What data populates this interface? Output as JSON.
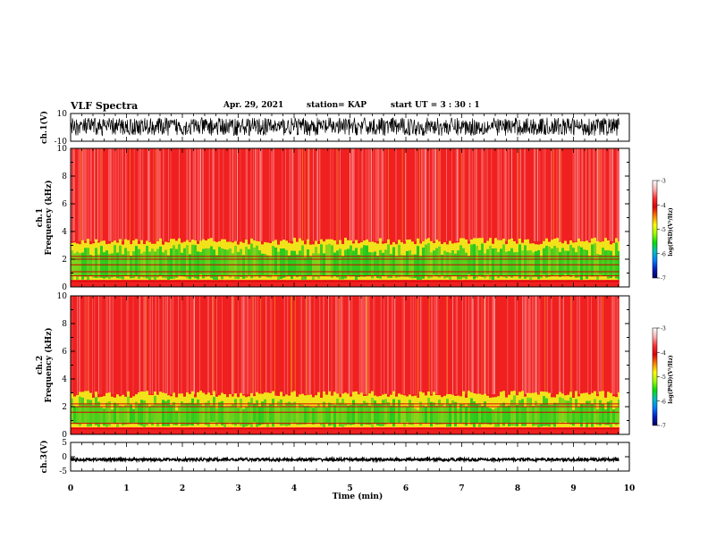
{
  "header": {
    "title": "VLF Spectra",
    "date": "Apr. 29, 2021",
    "station": "station= KAP",
    "start_ut": "start UT =  3 : 30 : 1"
  },
  "colors": {
    "spec_bg": "#f02020",
    "spec_dark": "#d40000",
    "spec_yellow": "#f2e21a",
    "spec_green": "#22c81e",
    "wave": "#000000"
  },
  "colorbar": {
    "label": "log(PSD)(V²/Hz)",
    "ticks": [
      "-3",
      "-4",
      "-5",
      "-6",
      "-7"
    ],
    "gradient": [
      "#ffffff",
      "#ffb0b0",
      "#ff3030",
      "#e00000",
      "#ff8000",
      "#ffff00",
      "#a0ff00",
      "#00e000",
      "#00c0c0",
      "#0080ff",
      "#0020c0",
      "#000060"
    ]
  },
  "chart_data": [
    {
      "type": "line",
      "name": "ch1-waveform",
      "ylabel": "ch.1(V)",
      "ylim": [
        -10,
        10
      ],
      "yticks": [
        "10",
        "-10"
      ],
      "xlim": [
        0,
        10
      ],
      "amplitude_range_v": [
        -6,
        7
      ]
    },
    {
      "type": "heatmap",
      "name": "ch1-spectrogram",
      "ylabel": "ch.1\nFrequency (kHz)",
      "ylim": [
        0,
        10
      ],
      "yticks": [
        "0",
        "2",
        "4",
        "6",
        "8",
        "10"
      ],
      "xlim": [
        0,
        9.82
      ],
      "band_top_khz": 3.3,
      "lines_khz": [
        0.4,
        0.8,
        1.1,
        1.6,
        2.0,
        2.2
      ],
      "clim": [
        -7,
        -3
      ]
    },
    {
      "type": "heatmap",
      "name": "ch2-spectrogram",
      "ylabel": "ch.2\nFrequency (kHz)",
      "ylim": [
        0,
        10
      ],
      "yticks": [
        "0",
        "2",
        "4",
        "6",
        "8",
        "10"
      ],
      "xlim": [
        0,
        9.82
      ],
      "band_top_khz": 2.9,
      "lines_khz": [
        0.4,
        0.8,
        1.6,
        2.0,
        2.2
      ],
      "clim": [
        -7,
        -3
      ]
    },
    {
      "type": "line",
      "name": "ch3-waveform",
      "ylabel": "ch.3(V)",
      "ylim": [
        -5,
        5
      ],
      "yticks": [
        "5",
        "0",
        "-5"
      ],
      "xlim": [
        0,
        10
      ],
      "amplitude_range_v": [
        -1.5,
        -0.5
      ]
    }
  ],
  "xaxis": {
    "label": "Time (min)",
    "ticks": [
      "0",
      "1",
      "2",
      "3",
      "4",
      "5",
      "6",
      "7",
      "8",
      "9",
      "10"
    ],
    "range": [
      0,
      10
    ]
  }
}
